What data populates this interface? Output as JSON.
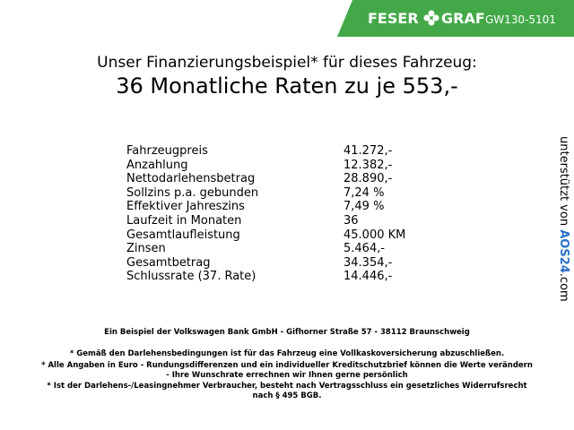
{
  "header": {
    "brand_left": "FESER",
    "brand_right": "GRAF",
    "vehicle_id": "GW130-5101"
  },
  "title": {
    "line1": "Unser Finanzierungsbeispiel* für dieses Fahrzeug:",
    "line2": "36 Monatliche Raten zu je 553,-"
  },
  "table": {
    "rows": [
      [
        "Fahrzeugpreis",
        "41.272,-"
      ],
      [
        "Anzahlung",
        "12.382,-"
      ],
      [
        "Nettodarlehensbetrag",
        "28.890,-"
      ],
      [
        "Sollzins p.a. gebunden",
        "7,24 %"
      ],
      [
        "Effektiver Jahreszins",
        "7,49 %"
      ],
      [
        "Laufzeit in Monaten",
        "36"
      ],
      [
        "Gesamtlaufleistung",
        "45.000 KM"
      ],
      [
        "Zinsen",
        "5.464,-"
      ],
      [
        "Gesamtbetrag",
        "34.354,-"
      ],
      [
        "Schlussrate (37. Rate)",
        "14.446,-"
      ]
    ]
  },
  "sidebar": {
    "prefix": "unterstützt von",
    "logo": "AOS24",
    "suffix": ".com"
  },
  "footer": {
    "bank": "Ein Beispiel der Volkswagen Bank GmbH - Gifhorner Straße 57 - 38112 Braunschweig",
    "notes": [
      "* Gemäß den Darlehensbedingungen ist für das Fahrzeug eine Vollkaskoversicherung abzuschließen.",
      "* Alle Angaben in Euro - Rundungsdifferenzen und ein individueller Kreditschutzbrief können die Werte verändern",
      "- Ihre Wunschrate errechnen wir Ihnen gerne persönlich",
      "* Ist der Darlehens-/Leasingnehmer Verbraucher, besteht nach Vertragsschluss ein gesetzliches Widerrufsrecht",
      "nach § 495 BGB."
    ]
  }
}
